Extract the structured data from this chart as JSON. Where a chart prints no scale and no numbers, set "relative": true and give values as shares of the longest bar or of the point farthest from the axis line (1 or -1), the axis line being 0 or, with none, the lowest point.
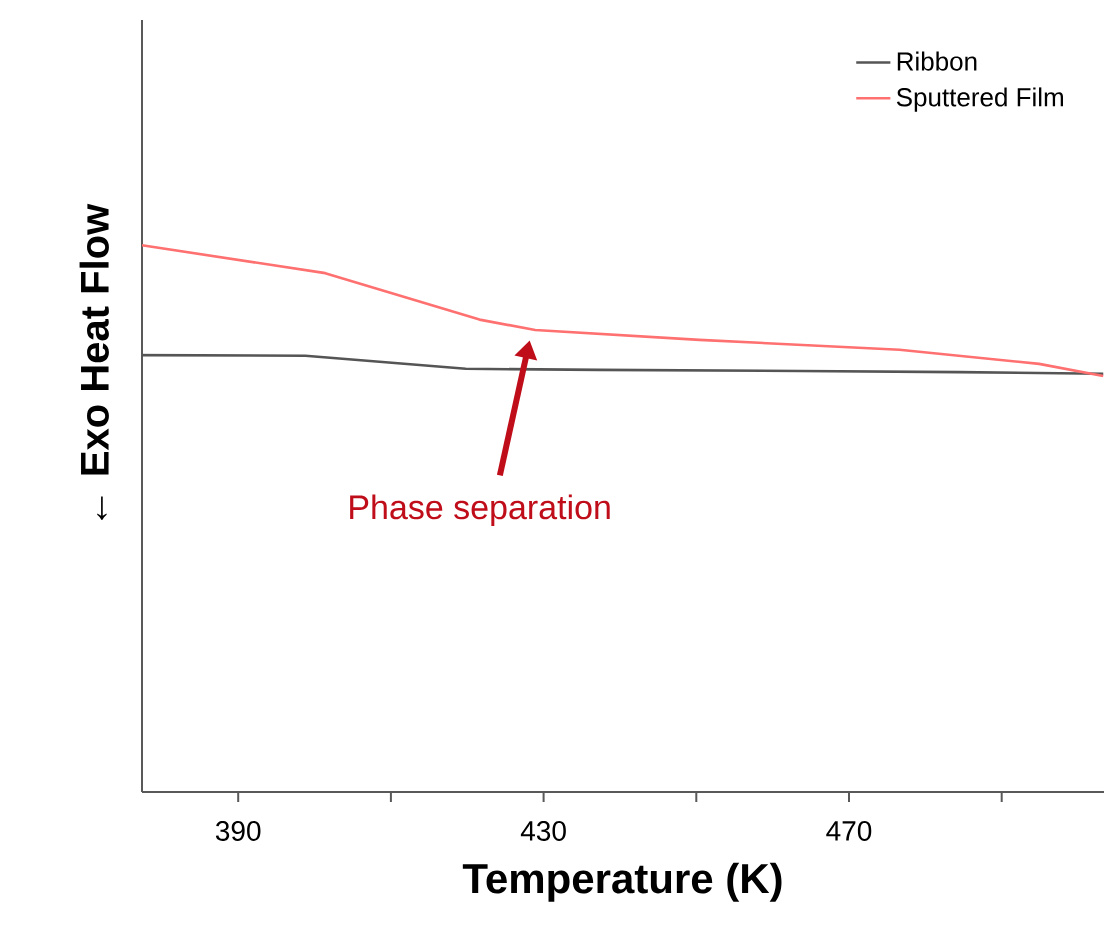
{
  "chart_data": {
    "type": "line",
    "relative": true,
    "xlabel": "Temperature (K)",
    "ylabel": "← Exo  Heat Flow",
    "xlim": [
      377.4,
      503.4
    ],
    "xticks": [
      390,
      {
        "value": 410,
        "label": null
      },
      430,
      {
        "value": 450,
        "label": null
      },
      470,
      {
        "value": 490,
        "label": null
      }
    ],
    "series": [
      {
        "name": "Ribbon",
        "color": "#555555",
        "x": [
          377.4,
          398.8,
          419.8,
          437.3,
          463.5,
          484.4,
          503.3
        ],
        "values": [
          0.799,
          0.798,
          0.774,
          0.772,
          0.77,
          0.768,
          0.765
        ]
      },
      {
        "name": "Sputtered Film",
        "color": "#ff7070",
        "x": [
          377.4,
          401.4,
          421.6,
          428.9,
          450.4,
          476.6,
          494.9,
          503.3
        ],
        "values": [
          1.0,
          0.949,
          0.864,
          0.845,
          0.827,
          0.809,
          0.783,
          0.761
        ]
      }
    ],
    "annotations": [
      "Phase separation"
    ],
    "legend": "top right",
    "marker": "none",
    "line_style": "solid",
    "grid": false
  }
}
